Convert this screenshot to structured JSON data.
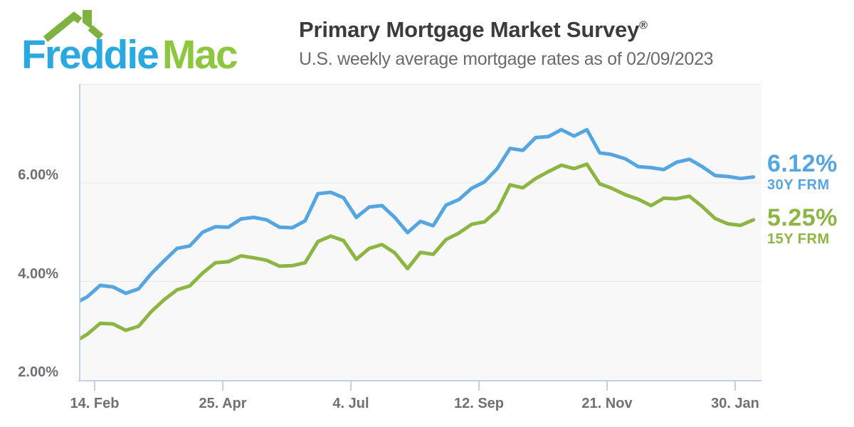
{
  "header": {
    "logo": {
      "word1": "Freddie",
      "word2": "Mac",
      "blue": "#2aa9e0",
      "green": "#8dc63f",
      "roof_green": "#7eb342"
    },
    "title": "Primary Mortgage Market Survey",
    "title_registered": "®",
    "subtitle": "U.S. weekly average mortgage rates as of 02/09/2023"
  },
  "chart_data": {
    "type": "line",
    "title": "Primary Mortgage Market Survey®",
    "subtitle": "U.S. weekly average mortgage rates as of 02/09/2023",
    "grid": true,
    "ylim": [
      2,
      8
    ],
    "y_tick_values": [
      2,
      4,
      6
    ],
    "y_tick_labels": [
      "2.00%",
      "4.00%",
      "6.00%"
    ],
    "x_tick_dates": [
      "2022-02-14",
      "2022-04-25",
      "2022-07-04",
      "2022-09-12",
      "2022-11-21",
      "2023-01-30"
    ],
    "x_tick_labels": [
      "14. Feb",
      "25. Apr",
      "4. Jul",
      "12. Sep",
      "21. Nov",
      "30. Jan"
    ],
    "dates": [
      "2022-02-03",
      "2022-02-10",
      "2022-02-17",
      "2022-02-24",
      "2022-03-03",
      "2022-03-10",
      "2022-03-17",
      "2022-03-24",
      "2022-03-31",
      "2022-04-07",
      "2022-04-14",
      "2022-04-21",
      "2022-04-28",
      "2022-05-05",
      "2022-05-12",
      "2022-05-19",
      "2022-05-26",
      "2022-06-02",
      "2022-06-09",
      "2022-06-16",
      "2022-06-23",
      "2022-06-30",
      "2022-07-07",
      "2022-07-14",
      "2022-07-21",
      "2022-07-28",
      "2022-08-04",
      "2022-08-11",
      "2022-08-18",
      "2022-08-25",
      "2022-09-01",
      "2022-09-08",
      "2022-09-15",
      "2022-09-22",
      "2022-09-29",
      "2022-10-06",
      "2022-10-13",
      "2022-10-20",
      "2022-10-27",
      "2022-11-03",
      "2022-11-10",
      "2022-11-17",
      "2022-11-23",
      "2022-12-01",
      "2022-12-08",
      "2022-12-15",
      "2022-12-22",
      "2022-12-29",
      "2023-01-05",
      "2023-01-12",
      "2023-01-19",
      "2023-01-26",
      "2023-02-02",
      "2023-02-09"
    ],
    "series": [
      {
        "name": "30Y FRM",
        "color": "#55a5e0",
        "end_label": {
          "rate": "6.12%",
          "name": "30Y FRM"
        },
        "values": [
          3.55,
          3.69,
          3.92,
          3.89,
          3.76,
          3.85,
          4.16,
          4.42,
          4.67,
          4.72,
          5.0,
          5.11,
          5.1,
          5.27,
          5.3,
          5.25,
          5.1,
          5.09,
          5.23,
          5.78,
          5.81,
          5.7,
          5.3,
          5.51,
          5.54,
          5.3,
          4.99,
          5.22,
          5.13,
          5.55,
          5.66,
          5.89,
          6.02,
          6.29,
          6.7,
          6.66,
          6.92,
          6.94,
          7.08,
          6.95,
          7.08,
          6.61,
          6.58,
          6.49,
          6.33,
          6.31,
          6.27,
          6.42,
          6.48,
          6.33,
          6.15,
          6.13,
          6.09,
          6.12
        ]
      },
      {
        "name": "15Y FRM",
        "color": "#8cb544",
        "end_label": {
          "rate": "5.25%",
          "name": "15Y FRM"
        },
        "values": [
          2.77,
          2.93,
          3.15,
          3.14,
          3.01,
          3.09,
          3.39,
          3.63,
          3.83,
          3.91,
          4.17,
          4.38,
          4.4,
          4.52,
          4.48,
          4.43,
          4.31,
          4.32,
          4.38,
          4.81,
          4.92,
          4.83,
          4.45,
          4.67,
          4.75,
          4.58,
          4.26,
          4.59,
          4.55,
          4.85,
          4.98,
          5.16,
          5.21,
          5.44,
          5.96,
          5.9,
          6.09,
          6.23,
          6.36,
          6.29,
          6.38,
          5.98,
          5.9,
          5.76,
          5.67,
          5.54,
          5.69,
          5.68,
          5.73,
          5.52,
          5.28,
          5.17,
          5.14,
          5.25
        ]
      }
    ]
  }
}
